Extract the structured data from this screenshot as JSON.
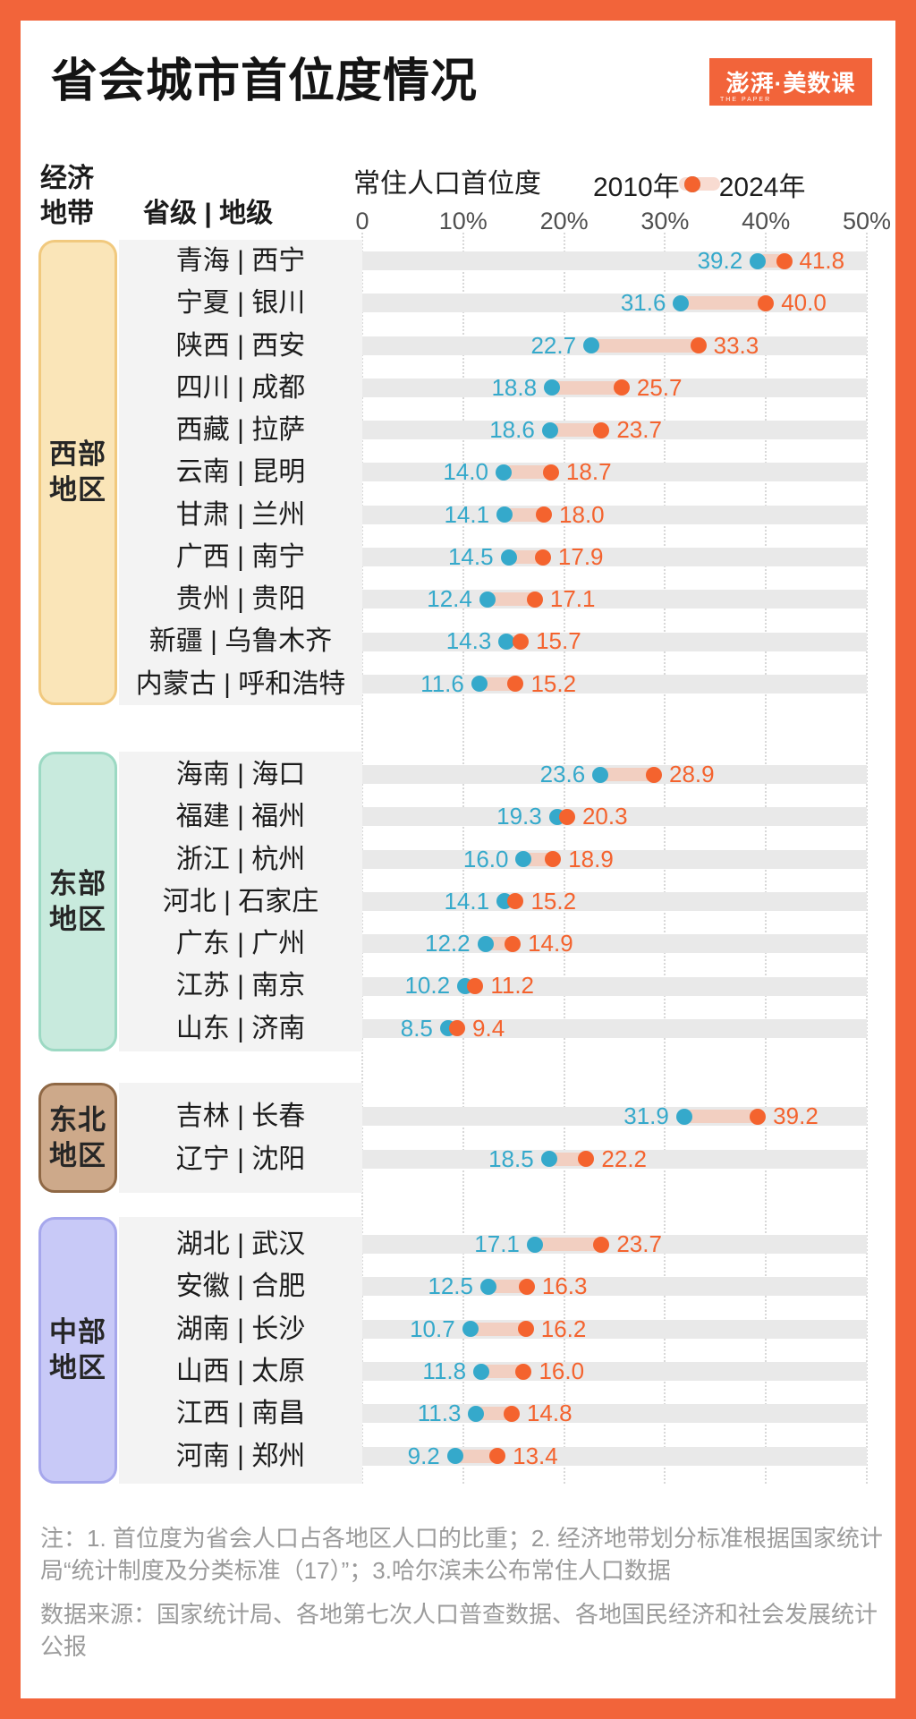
{
  "frame_color": "#F2643A",
  "title": "省会城市首位度情况",
  "logo": {
    "main": "澎湃·美数课",
    "sub": "THE PAPER"
  },
  "header": {
    "zone_col_line1": "经济",
    "zone_col_line2": "地带",
    "admin_col": "省级 | 地级",
    "metric": "常住人口首位度",
    "legend_2010": "2010年",
    "legend_2024": "2024年"
  },
  "chart_data": {
    "type": "dumbbell",
    "title": "省会城市首位度情况",
    "x_axis_label": "常住人口首位度",
    "x_tick_labels": [
      "0",
      "10%",
      "20%",
      "30%",
      "40%",
      "50%"
    ],
    "x_tick_values": [
      0,
      10,
      20,
      30,
      40,
      50
    ],
    "x_range": [
      0,
      50
    ],
    "unit": "percent",
    "series": [
      "2010年",
      "2024年"
    ],
    "colors": {
      "dot_2010": "#35A9CB",
      "dot_2024": "#F4632E",
      "connector": "#F2CFC1",
      "legend_connector": "#F8DBD1",
      "row_band": "#E9E9E9",
      "label_panel": "#F3F3F3",
      "gridline": "#D8D8D8"
    },
    "groups": [
      {
        "region": "西部地区",
        "region_lines": [
          "西部",
          "地区"
        ],
        "tag_fill": "#FAE5B8",
        "tag_border": "#F1C97E",
        "rows": [
          {
            "province": "青海",
            "city": "西宁",
            "y2010": 39.2,
            "y2024": 41.8
          },
          {
            "province": "宁夏",
            "city": "银川",
            "y2010": 31.6,
            "y2024": 40.0
          },
          {
            "province": "陕西",
            "city": "西安",
            "y2010": 22.7,
            "y2024": 33.3
          },
          {
            "province": "四川",
            "city": "成都",
            "y2010": 18.8,
            "y2024": 25.7
          },
          {
            "province": "西藏",
            "city": "拉萨",
            "y2010": 18.6,
            "y2024": 23.7
          },
          {
            "province": "云南",
            "city": "昆明",
            "y2010": 14.0,
            "y2024": 18.7
          },
          {
            "province": "甘肃",
            "city": "兰州",
            "y2010": 14.1,
            "y2024": 18.0
          },
          {
            "province": "广西",
            "city": "南宁",
            "y2010": 14.5,
            "y2024": 17.9
          },
          {
            "province": "贵州",
            "city": "贵阳",
            "y2010": 12.4,
            "y2024": 17.1
          },
          {
            "province": "新疆",
            "city": "乌鲁木齐",
            "y2010": 14.3,
            "y2024": 15.7
          },
          {
            "province": "内蒙古",
            "city": "呼和浩特",
            "y2010": 11.6,
            "y2024": 15.2
          }
        ]
      },
      {
        "region": "东部地区",
        "region_lines": [
          "东部",
          "地区"
        ],
        "tag_fill": "#C8EADD",
        "tag_border": "#9CD9C3",
        "rows": [
          {
            "province": "海南",
            "city": "海口",
            "y2010": 23.6,
            "y2024": 28.9
          },
          {
            "province": "福建",
            "city": "福州",
            "y2010": 19.3,
            "y2024": 20.3
          },
          {
            "province": "浙江",
            "city": "杭州",
            "y2010": 16.0,
            "y2024": 18.9
          },
          {
            "province": "河北",
            "city": "石家庄",
            "y2010": 14.1,
            "y2024": 15.2
          },
          {
            "province": "广东",
            "city": "广州",
            "y2010": 12.2,
            "y2024": 14.9
          },
          {
            "province": "江苏",
            "city": "南京",
            "y2010": 10.2,
            "y2024": 11.2
          },
          {
            "province": "山东",
            "city": "济南",
            "y2010": 8.5,
            "y2024": 9.4
          }
        ]
      },
      {
        "region": "东北地区",
        "region_lines": [
          "东北",
          "地区"
        ],
        "tag_fill": "#CDA98A",
        "tag_border": "#8F6845",
        "rows": [
          {
            "province": "吉林",
            "city": "长春",
            "y2010": 31.9,
            "y2024": 39.2
          },
          {
            "province": "辽宁",
            "city": "沈阳",
            "y2010": 18.5,
            "y2024": 22.2
          }
        ]
      },
      {
        "region": "中部地区",
        "region_lines": [
          "中部",
          "地区"
        ],
        "tag_fill": "#C8C9F7",
        "tag_border": "#A6A7EC",
        "rows": [
          {
            "province": "湖北",
            "city": "武汉",
            "y2010": 17.1,
            "y2024": 23.7
          },
          {
            "province": "安徽",
            "city": "合肥",
            "y2010": 12.5,
            "y2024": 16.3
          },
          {
            "province": "湖南",
            "city": "长沙",
            "y2010": 10.7,
            "y2024": 16.2
          },
          {
            "province": "山西",
            "city": "太原",
            "y2010": 11.8,
            "y2024": 16.0
          },
          {
            "province": "江西",
            "city": "南昌",
            "y2010": 11.3,
            "y2024": 14.8
          },
          {
            "province": "河南",
            "city": "郑州",
            "y2010": 9.2,
            "y2024": 13.4
          }
        ]
      }
    ]
  },
  "footer": {
    "note": "注：1. 首位度为省会人口占各地区人口的比重；2. 经济地带划分标准根据国家统计局“统计制度及分类标准（17）”；3.哈尔滨未公布常住人口数据",
    "source": "数据来源：国家统计局、各地第七次人口普查数据、各地国民经济和社会发展统计公报"
  }
}
